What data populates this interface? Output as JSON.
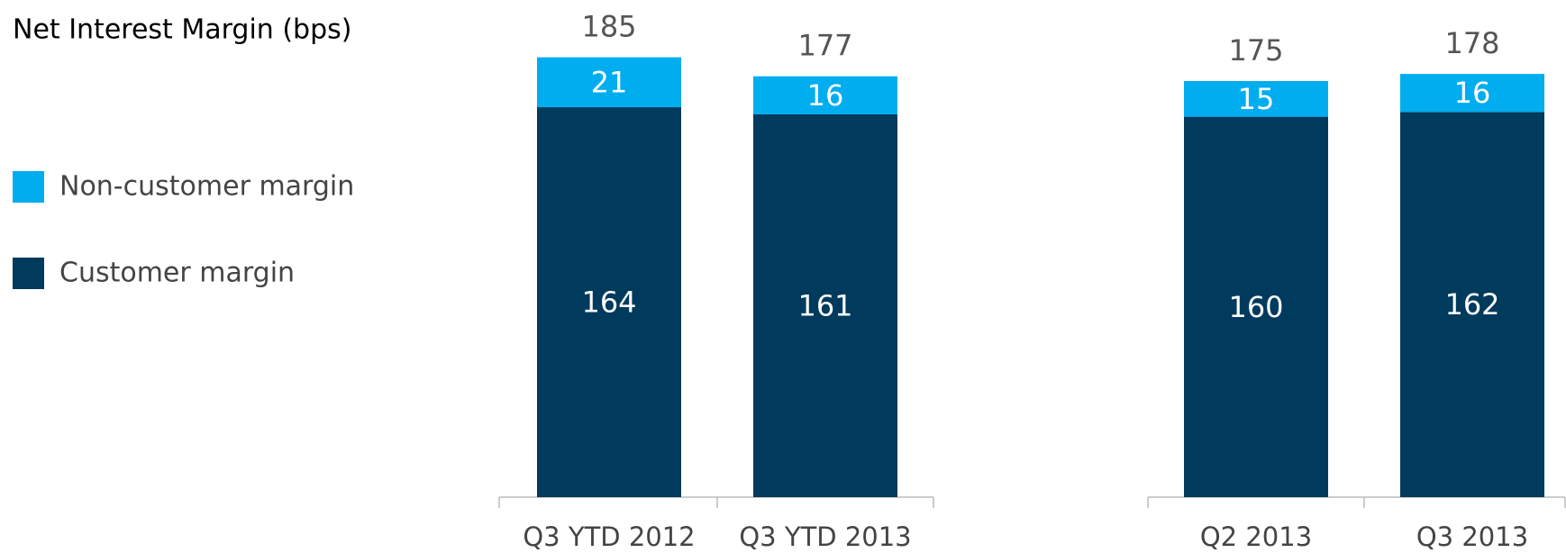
{
  "chart_data": {
    "type": "stacked_bar",
    "title": "Net Interest Margin (bps)",
    "categories": [
      "Q3 YTD 2012",
      "Q3 YTD 2013",
      "Q2 2013",
      "Q3 2013"
    ],
    "series": [
      {
        "name": "Customer margin",
        "color": "#003a5d",
        "values": [
          164,
          161,
          160,
          162
        ]
      },
      {
        "name": "Non-customer margin",
        "color": "#00adef",
        "values": [
          21,
          16,
          15,
          16
        ]
      }
    ],
    "totals": [
      185,
      177,
      175,
      178
    ],
    "ylim": [
      0,
      200
    ]
  }
}
